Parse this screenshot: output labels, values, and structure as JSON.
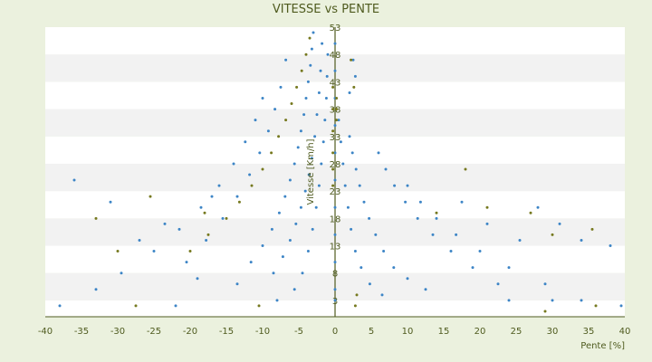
{
  "colors": {
    "background": "#ebf1de",
    "plot_band_light": "#ffffff",
    "plot_band_dark": "#f2f2f2",
    "series_blue": "#3d85c6",
    "series_olive": "#76791f",
    "axis": "#4f5b1f",
    "text": "#4f5b1f"
  },
  "chart_data": {
    "type": "scatter",
    "title": "VITESSE vs PENTE",
    "xlabel": "Pente [%]",
    "ylabel": "Vitesse [Km/h]",
    "xlim": [
      -40,
      40
    ],
    "ylim": [
      0,
      53
    ],
    "x_ticks": [
      -40,
      -35,
      -30,
      -25,
      -20,
      -15,
      -10,
      -5,
      0,
      5,
      10,
      15,
      20,
      25,
      30,
      35,
      40
    ],
    "y_ticks": [
      3,
      8,
      13,
      18,
      23,
      28,
      33,
      38,
      43,
      48,
      53
    ],
    "grid": "horizontal alternating bands",
    "legend": "none",
    "series": [
      {
        "color": "#3d85c6",
        "points": [
          [
            -3.0,
            52.0
          ],
          [
            -3.2,
            49.0
          ],
          [
            -3.4,
            46.0
          ],
          [
            -3.7,
            43.0
          ],
          [
            -4.0,
            40.0
          ],
          [
            -4.3,
            37.0
          ],
          [
            -4.7,
            34.0
          ],
          [
            -5.1,
            31.0
          ],
          [
            -5.6,
            28.0
          ],
          [
            -6.2,
            25.0
          ],
          [
            -6.9,
            22.0
          ],
          [
            -7.7,
            19.0
          ],
          [
            -8.7,
            16.0
          ],
          [
            -10.0,
            13.0
          ],
          [
            -11.6,
            10.0
          ],
          [
            -1.8,
            50.0
          ],
          [
            -2.0,
            45.0
          ],
          [
            -2.2,
            41.0
          ],
          [
            -2.5,
            37.0
          ],
          [
            -2.8,
            33.0
          ],
          [
            -3.2,
            29.0
          ],
          [
            -3.6,
            26.0
          ],
          [
            -4.1,
            23.0
          ],
          [
            -4.7,
            20.0
          ],
          [
            -5.4,
            17.0
          ],
          [
            -6.2,
            14.0
          ],
          [
            -7.2,
            11.0
          ],
          [
            -8.5,
            8.0
          ],
          [
            -1.0,
            48.0
          ],
          [
            -1.1,
            44.0
          ],
          [
            -1.2,
            40.0
          ],
          [
            -1.4,
            36.0
          ],
          [
            -1.6,
            32.0
          ],
          [
            -1.9,
            28.0
          ],
          [
            -2.2,
            24.0
          ],
          [
            -2.6,
            20.0
          ],
          [
            -3.1,
            16.0
          ],
          [
            -3.7,
            12.0
          ],
          [
            -4.5,
            8.0
          ],
          [
            -5.6,
            5.0
          ],
          [
            -6.8,
            47.0
          ],
          [
            -7.5,
            42.0
          ],
          [
            -8.3,
            38.0
          ],
          [
            -9.2,
            34.0
          ],
          [
            -10.4,
            30.0
          ],
          [
            -11.8,
            26.0
          ],
          [
            -13.5,
            22.0
          ],
          [
            -15.5,
            18.0
          ],
          [
            -17.8,
            14.0
          ],
          [
            -20.5,
            10.0
          ],
          [
            -10.0,
            40.0
          ],
          [
            -11.0,
            36.0
          ],
          [
            -12.4,
            32.0
          ],
          [
            -14.0,
            28.0
          ],
          [
            -16.0,
            24.0
          ],
          [
            -18.5,
            20.0
          ],
          [
            -21.5,
            16.0
          ],
          [
            -25.0,
            12.0
          ],
          [
            -29.5,
            8.0
          ],
          [
            -38.0,
            2.0
          ],
          [
            -36.0,
            25.0
          ],
          [
            -33.0,
            5.0
          ],
          [
            -31.0,
            21.0
          ],
          [
            -27.0,
            14.0
          ],
          [
            -23.5,
            17.0
          ],
          [
            -22.0,
            2.0
          ],
          [
            -19.0,
            7.0
          ],
          [
            -17.0,
            22.0
          ],
          [
            -13.5,
            6.0
          ],
          [
            -8.0,
            3.0
          ],
          [
            0.0,
            50.0
          ],
          [
            0.0,
            45.0
          ],
          [
            0.0,
            40.0
          ],
          [
            0.0,
            35.0
          ],
          [
            0.0,
            30.0
          ],
          [
            0.0,
            25.0
          ],
          [
            0.0,
            20.0
          ],
          [
            0.0,
            15.0
          ],
          [
            0.0,
            10.0
          ],
          [
            0.0,
            5.0
          ],
          [
            0.0,
            3.0
          ],
          [
            0.5,
            36.0
          ],
          [
            0.8,
            32.0
          ],
          [
            1.1,
            28.0
          ],
          [
            1.4,
            24.0
          ],
          [
            1.8,
            20.0
          ],
          [
            2.2,
            16.0
          ],
          [
            2.8,
            12.0
          ],
          [
            3.6,
            9.0
          ],
          [
            4.8,
            6.0
          ],
          [
            6.5,
            4.0
          ],
          [
            2.0,
            33.0
          ],
          [
            2.4,
            30.0
          ],
          [
            2.9,
            27.0
          ],
          [
            3.4,
            24.0
          ],
          [
            4.0,
            21.0
          ],
          [
            4.7,
            18.0
          ],
          [
            5.6,
            15.0
          ],
          [
            6.7,
            12.0
          ],
          [
            8.1,
            9.0
          ],
          [
            10.0,
            7.0
          ],
          [
            12.5,
            5.0
          ],
          [
            6.0,
            30.0
          ],
          [
            7.0,
            27.0
          ],
          [
            8.2,
            24.0
          ],
          [
            9.7,
            21.0
          ],
          [
            11.4,
            18.0
          ],
          [
            13.5,
            15.0
          ],
          [
            16.0,
            12.0
          ],
          [
            19.0,
            9.0
          ],
          [
            22.5,
            6.0
          ],
          [
            10.0,
            24.0
          ],
          [
            11.8,
            21.0
          ],
          [
            14.0,
            18.0
          ],
          [
            16.7,
            15.0
          ],
          [
            20.0,
            12.0
          ],
          [
            24.0,
            9.0
          ],
          [
            29.0,
            6.0
          ],
          [
            34.0,
            3.0
          ],
          [
            2.5,
            47.0
          ],
          [
            2.8,
            44.0
          ],
          [
            2.0,
            41.0
          ],
          [
            17.5,
            21.0
          ],
          [
            21.0,
            17.0
          ],
          [
            25.5,
            14.0
          ],
          [
            28.0,
            20.0
          ],
          [
            31.0,
            17.0
          ],
          [
            34.0,
            14.0
          ],
          [
            38.0,
            13.0
          ],
          [
            39.5,
            2.0
          ],
          [
            30.0,
            3.0
          ],
          [
            24.0,
            3.0
          ]
        ]
      },
      {
        "color": "#76791f",
        "points": [
          [
            -3.5,
            51.0
          ],
          [
            -4.0,
            48.0
          ],
          [
            -4.6,
            45.0
          ],
          [
            -5.3,
            42.0
          ],
          [
            -6.0,
            39.0
          ],
          [
            -6.8,
            36.0
          ],
          [
            -7.8,
            33.0
          ],
          [
            -8.8,
            30.0
          ],
          [
            -10.0,
            27.0
          ],
          [
            -11.5,
            24.0
          ],
          [
            -13.2,
            21.0
          ],
          [
            -15.0,
            18.0
          ],
          [
            -17.5,
            15.0
          ],
          [
            -20.0,
            12.0
          ],
          [
            -0.3,
            42.0
          ],
          [
            -0.3,
            38.0
          ],
          [
            -0.3,
            34.0
          ],
          [
            -0.3,
            30.0
          ],
          [
            -0.3,
            27.0
          ],
          [
            -0.3,
            24.0
          ],
          [
            0.2,
            40.0
          ],
          [
            0.2,
            38.0
          ],
          [
            0.2,
            36.0
          ],
          [
            2.2,
            47.0
          ],
          [
            2.6,
            42.0
          ],
          [
            3.0,
            4.0
          ],
          [
            2.8,
            2.0
          ],
          [
            14.0,
            19.0
          ],
          [
            18.0,
            27.0
          ],
          [
            21.0,
            20.0
          ],
          [
            27.0,
            19.0
          ],
          [
            30.0,
            15.0
          ],
          [
            35.5,
            16.0
          ],
          [
            36.0,
            2.0
          ],
          [
            29.0,
            1.0
          ],
          [
            -33.0,
            18.0
          ],
          [
            -30.0,
            12.0
          ],
          [
            -27.5,
            2.0
          ],
          [
            -25.5,
            22.0
          ],
          [
            -18.0,
            19.0
          ],
          [
            -10.5,
            2.0
          ]
        ]
      }
    ]
  }
}
